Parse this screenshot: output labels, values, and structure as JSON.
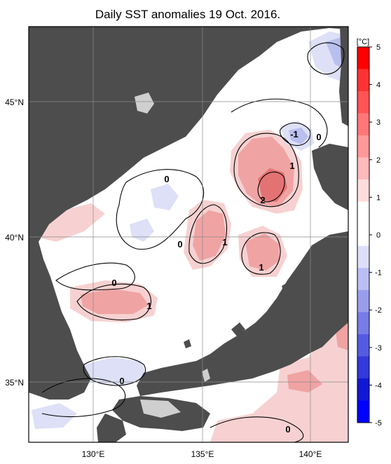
{
  "title": "Daily SST anomalies 19 Oct. 2016.",
  "map": {
    "lon_labels": [
      "130°E",
      "135°E",
      "140°E"
    ],
    "lat_labels": [
      "45°N",
      "40°N",
      "35°N"
    ],
    "contour_labels": [
      "-1",
      "0",
      "0",
      "0",
      "0",
      "0",
      "1",
      "1",
      "1",
      "1",
      "2"
    ],
    "colors": {
      "land": "#4d4d4d",
      "land_light": "#cfcfcf",
      "neutral": "#ffffff",
      "warm_light": "#f7d1d1",
      "warm_mid": "#f0a3a3",
      "warm_strong": "#e37373",
      "cool_light": "#dde0f6",
      "cool_mid": "#b9bfee",
      "cool_strong": "#8f97e2",
      "contour": "#000000",
      "graticule": "#8a8a8a"
    }
  },
  "colorbar": {
    "unit": "[°C]",
    "ticks": [
      "5",
      "4",
      "3",
      "2",
      "1",
      "0",
      "-1",
      "-2",
      "-3",
      "-4",
      "-5"
    ],
    "colors": [
      "#ff0000",
      "#ff3333",
      "#ff5555",
      "#ff7777",
      "#ff9999",
      "#ffbbbb",
      "#ffdddd",
      "#ffffff",
      "#ffffff",
      "#dddff8",
      "#bbbef2",
      "#999eec",
      "#777ce6",
      "#555be0",
      "#3339da",
      "#1118d4",
      "#0000ff"
    ]
  }
}
